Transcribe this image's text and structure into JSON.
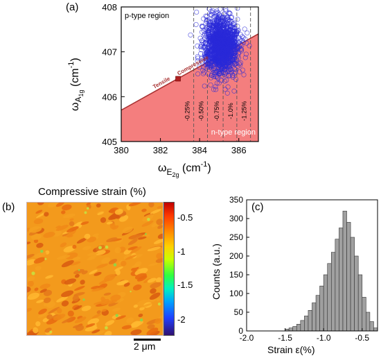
{
  "chart_data": [
    {
      "type": "scatter",
      "panel_label": "(a)",
      "xlabel": "ω",
      "xlabel_sub": "E",
      "xlabel_subsub": "2g",
      "xlabel_unit": "(cm",
      "xlabel_unit_sup": "-1",
      "xlabel_unit_close": ")",
      "ylabel": "ω",
      "ylabel_sub": "A",
      "ylabel_subsub": "1g",
      "ylabel_unit": "(cm",
      "ylabel_unit_sup": "-1",
      "ylabel_unit_close": ")",
      "xlim": [
        380,
        387
      ],
      "ylim": [
        405,
        408
      ],
      "xticks": [
        380,
        382,
        384,
        386
      ],
      "xtick_labels": [
        "380",
        "382",
        "384",
        "386"
      ],
      "yticks": [
        405,
        406,
        407,
        408
      ],
      "ytick_labels": [
        "405",
        "406",
        "407",
        "408"
      ],
      "region_labels": {
        "p_type": "p-type region",
        "n_type": "n-type region"
      },
      "boundary_line": {
        "x": [
          380,
          387
        ],
        "y": [
          405.7,
          407.4
        ]
      },
      "reference_point": {
        "x": 382.9,
        "y": 406.4
      },
      "annotations": {
        "tensile": "Tensile",
        "compressive": "Compressive"
      },
      "strain_lines": [
        {
          "label": "-0.25%",
          "x": 383.7
        },
        {
          "label": "-0.50%",
          "x": 384.4
        },
        {
          "label": "-0.75%",
          "x": 385.2
        },
        {
          "label": "-1.0%",
          "x": 385.9
        },
        {
          "label": "-1.25%",
          "x": 386.6
        }
      ],
      "cloud": {
        "center_x": 385.1,
        "center_y": 407.15,
        "spread_x": 0.45,
        "spread_y": 0.32,
        "color": "#2a2ad8"
      },
      "colors": {
        "region_fill": "#f47e7e",
        "boundary": "#a83232",
        "point": "#2a2ad8"
      }
    },
    {
      "type": "heatmap",
      "panel_label": "(b)",
      "title": "Compressive strain (%)",
      "colorbar_ticks": [
        "-0.5",
        "-1",
        "-1.5",
        "-2"
      ],
      "colorbar_range": [
        -2.3,
        -0.3
      ],
      "scale_bar": "2 μm"
    },
    {
      "type": "bar",
      "panel_label": "(c)",
      "xlabel": "Strain ε(%)",
      "ylabel": "Counts (a.u.)",
      "xlim": [
        -2.0,
        -0.3
      ],
      "ylim": [
        0,
        350
      ],
      "xticks": [
        -2.0,
        -1.5,
        -1.0,
        -0.5
      ],
      "xtick_labels": [
        "-2.0",
        "-1.5",
        "-1.0",
        "-0.5"
      ],
      "yticks": [
        0,
        50,
        100,
        150,
        200,
        250,
        300,
        350
      ],
      "ytick_labels": [
        "0",
        "50",
        "100",
        "150",
        "200",
        "250",
        "300",
        "350"
      ],
      "bin_width": 0.05,
      "bin_starts": [
        -1.5,
        -1.45,
        -1.4,
        -1.35,
        -1.3,
        -1.25,
        -1.2,
        -1.15,
        -1.1,
        -1.05,
        -1.0,
        -0.95,
        -0.9,
        -0.85,
        -0.8,
        -0.75,
        -0.7,
        -0.65,
        -0.6,
        -0.55,
        -0.5,
        -0.45,
        -0.4,
        -0.35
      ],
      "values": [
        5,
        8,
        12,
        18,
        28,
        40,
        55,
        75,
        95,
        120,
        150,
        180,
        210,
        245,
        275,
        320,
        290,
        250,
        200,
        150,
        90,
        50,
        25,
        8
      ],
      "bar_color": "#a0a0a0"
    }
  ]
}
